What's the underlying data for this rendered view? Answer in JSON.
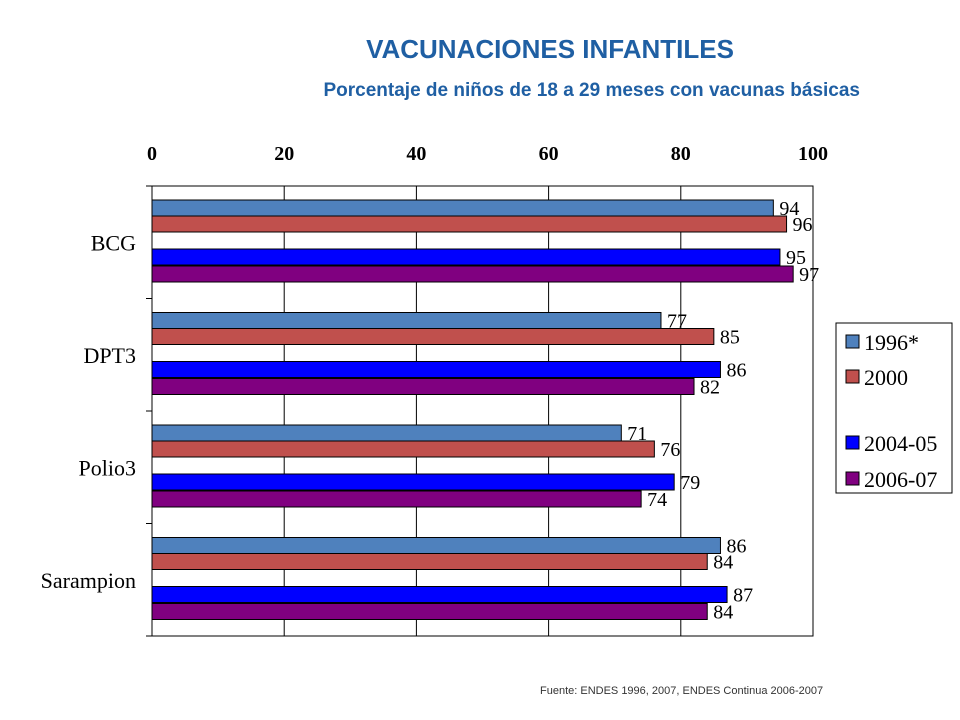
{
  "title": "VACUNACIONES INFANTILES",
  "subtitle": "Porcentaje de niños de 18 a 29 meses con vacunas básicas",
  "source": "Fuente: ENDES 1996,  2007,  ENDES Continua  2006-2007",
  "chart_data": {
    "type": "bar",
    "orientation": "horizontal",
    "categories": [
      "BCG",
      "DPT3",
      "Polio3",
      "Sarampion"
    ],
    "series": [
      {
        "name": "1996*",
        "color": "#4f81bd",
        "values": [
          94,
          77,
          71,
          86
        ]
      },
      {
        "name": "2000",
        "color": "#c0504d",
        "values": [
          96,
          85,
          76,
          84
        ]
      },
      {
        "name": "2004-05",
        "color": "#0000ff",
        "values": [
          95,
          86,
          79,
          87
        ]
      },
      {
        "name": "2006-07",
        "color": "#800080",
        "values": [
          97,
          82,
          74,
          84
        ]
      }
    ],
    "xlim": [
      0,
      100
    ],
    "xticks": [
      "0",
      "20",
      "40",
      "60",
      "80",
      "100"
    ],
    "xaxis_position": "top",
    "grid": true,
    "legend_position": "right",
    "data_labels": true
  }
}
